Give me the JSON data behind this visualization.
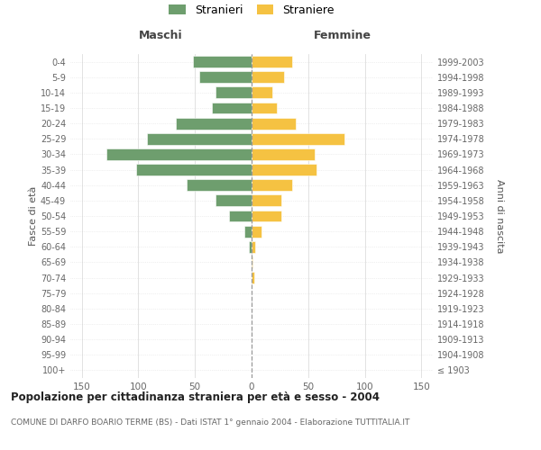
{
  "age_groups": [
    "100+",
    "95-99",
    "90-94",
    "85-89",
    "80-84",
    "75-79",
    "70-74",
    "65-69",
    "60-64",
    "55-59",
    "50-54",
    "45-49",
    "40-44",
    "35-39",
    "30-34",
    "25-29",
    "20-24",
    "15-19",
    "10-14",
    "5-9",
    "0-4"
  ],
  "birth_years": [
    "≤ 1903",
    "1904-1908",
    "1909-1913",
    "1914-1918",
    "1919-1923",
    "1924-1928",
    "1929-1933",
    "1934-1938",
    "1939-1943",
    "1944-1948",
    "1949-1953",
    "1954-1958",
    "1959-1963",
    "1964-1968",
    "1969-1973",
    "1974-1978",
    "1979-1983",
    "1984-1988",
    "1989-1993",
    "1994-1998",
    "1999-2003"
  ],
  "males": [
    0,
    0,
    0,
    0,
    0,
    0,
    0,
    0,
    2,
    6,
    20,
    32,
    57,
    102,
    128,
    92,
    67,
    35,
    32,
    46,
    52
  ],
  "females": [
    0,
    0,
    0,
    0,
    0,
    0,
    2,
    1,
    3,
    9,
    26,
    26,
    36,
    57,
    56,
    82,
    39,
    22,
    18,
    29,
    36
  ],
  "male_color": "#6e9e6e",
  "female_color": "#f5c242",
  "grid_color": "#cccccc",
  "center_line_color": "#999999",
  "bg_color": "#ffffff",
  "xlim": 160,
  "xticks": [
    -150,
    -100,
    -50,
    0,
    50,
    100,
    150
  ],
  "xticklabels": [
    "150",
    "100",
    "50",
    "0",
    "50",
    "100",
    "150"
  ],
  "title": "Popolazione per cittadinanza straniera per età e sesso - 2004",
  "subtitle": "COMUNE DI DARFO BOARIO TERME (BS) - Dati ISTAT 1° gennaio 2004 - Elaborazione TUTTITALIA.IT",
  "legend_stranieri": "Stranieri",
  "legend_straniere": "Straniere",
  "header_left": "Maschi",
  "header_right": "Femmine",
  "ylabel_left": "Fasce di età",
  "ylabel_right": "Anni di nascita"
}
